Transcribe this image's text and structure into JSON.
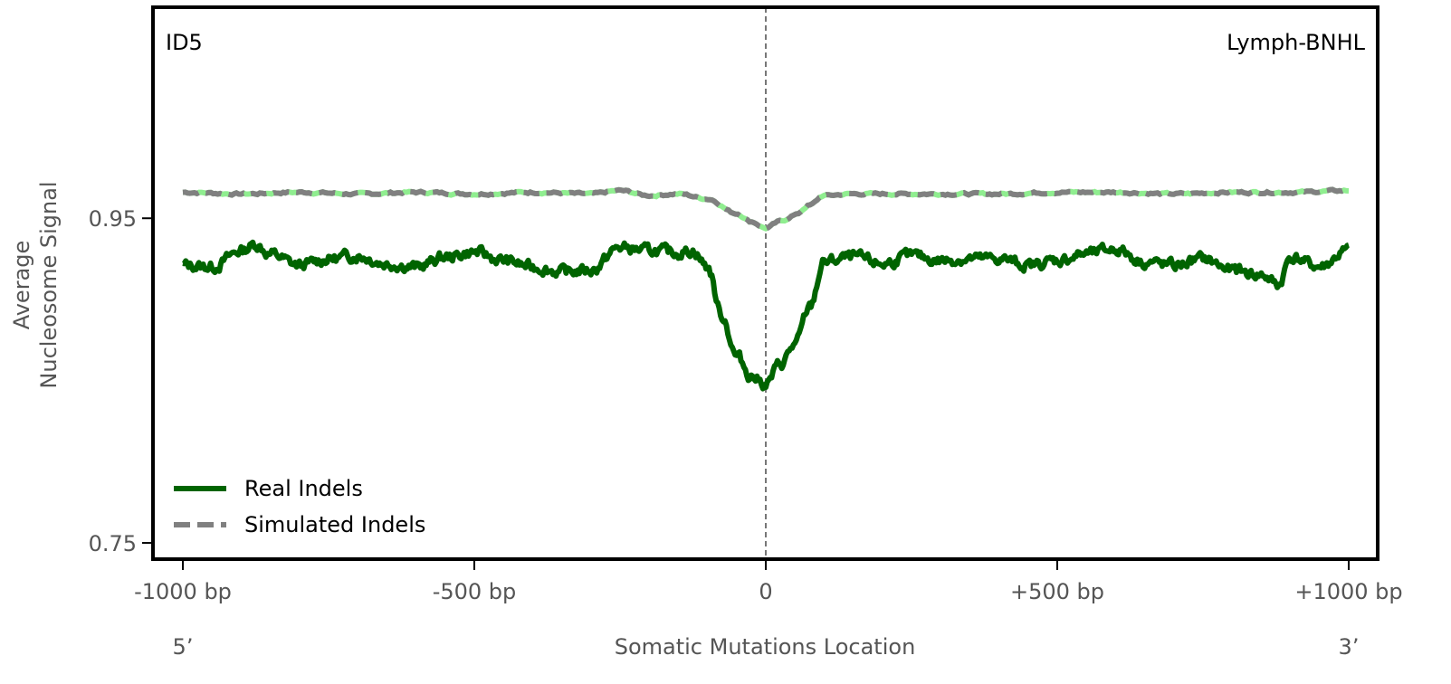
{
  "chart_data": {
    "type": "line",
    "panel_label": "ID5",
    "tissue_label": "Lymph-BNHL",
    "xlabel": "Somatic Mutations Location",
    "ylabel_lines": [
      "Average",
      "Nucleosome Signal"
    ],
    "five_prime": "5’",
    "three_prime": "3’",
    "xlim": [
      -1000,
      1000
    ],
    "ylim": [
      0.74,
      1.08
    ],
    "x_ticks": [
      {
        "value": -1000,
        "label": "-1000 bp"
      },
      {
        "value": -500,
        "label": "-500 bp"
      },
      {
        "value": 0,
        "label": "0"
      },
      {
        "value": 500,
        "label": "+500 bp"
      },
      {
        "value": 1000,
        "label": "+1000 bp"
      }
    ],
    "y_ticks": [
      {
        "value": 0.75,
        "label": "0.75"
      },
      {
        "value": 0.95,
        "label": "0.95"
      }
    ],
    "vline_x": 0,
    "legend_position": "lower-left",
    "series": [
      {
        "name": "Real Indels",
        "color": "#006400",
        "style": "solid",
        "x": [
          -1000,
          -950,
          -900,
          -875,
          -850,
          -800,
          -750,
          -700,
          -650,
          -600,
          -550,
          -500,
          -450,
          -400,
          -350,
          -300,
          -250,
          -200,
          -150,
          -125,
          -100,
          -75,
          -50,
          -25,
          0,
          25,
          50,
          75,
          100,
          150,
          200,
          250,
          300,
          350,
          400,
          450,
          500,
          550,
          600,
          650,
          700,
          750,
          800,
          850,
          880,
          900,
          950,
          1000
        ],
        "values": [
          0.921,
          0.92,
          0.93,
          0.934,
          0.928,
          0.921,
          0.925,
          0.927,
          0.922,
          0.92,
          0.926,
          0.929,
          0.924,
          0.92,
          0.917,
          0.918,
          0.932,
          0.93,
          0.929,
          0.93,
          0.92,
          0.89,
          0.865,
          0.853,
          0.848,
          0.86,
          0.872,
          0.895,
          0.923,
          0.926,
          0.922,
          0.927,
          0.924,
          0.925,
          0.925,
          0.921,
          0.924,
          0.928,
          0.931,
          0.923,
          0.921,
          0.925,
          0.918,
          0.915,
          0.909,
          0.926,
          0.92,
          0.93
        ]
      },
      {
        "name": "Simulated Indels",
        "color": "#808080",
        "overlay_color": "#90EE90",
        "style": "dashed",
        "x": [
          -1000,
          -900,
          -800,
          -700,
          -600,
          -500,
          -400,
          -300,
          -250,
          -200,
          -150,
          -100,
          -50,
          -25,
          0,
          25,
          50,
          75,
          100,
          150,
          200,
          300,
          400,
          500,
          600,
          700,
          800,
          900,
          1000
        ],
        "values": [
          0.966,
          0.965,
          0.966,
          0.965,
          0.966,
          0.965,
          0.966,
          0.965,
          0.967,
          0.964,
          0.965,
          0.962,
          0.953,
          0.948,
          0.944,
          0.948,
          0.952,
          0.958,
          0.964,
          0.965,
          0.965,
          0.965,
          0.965,
          0.966,
          0.966,
          0.965,
          0.966,
          0.966,
          0.967
        ]
      }
    ]
  }
}
